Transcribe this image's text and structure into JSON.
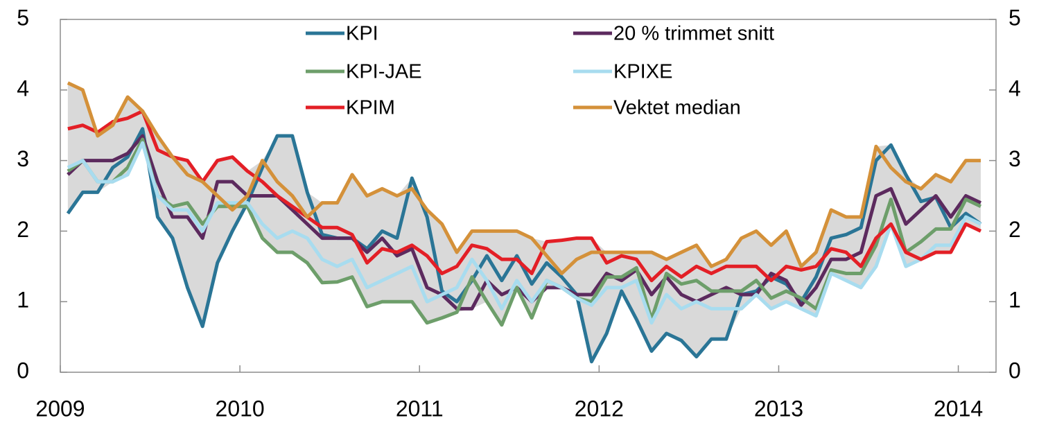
{
  "chart_data": {
    "type": "line",
    "x": [
      2009.042,
      2009.125,
      2009.208,
      2009.292,
      2009.375,
      2009.458,
      2009.542,
      2009.625,
      2009.708,
      2009.792,
      2009.875,
      2009.958,
      2010.042,
      2010.125,
      2010.208,
      2010.292,
      2010.375,
      2010.458,
      2010.542,
      2010.625,
      2010.708,
      2010.792,
      2010.875,
      2010.958,
      2011.042,
      2011.125,
      2011.208,
      2011.292,
      2011.375,
      2011.458,
      2011.542,
      2011.625,
      2011.708,
      2011.792,
      2011.875,
      2011.958,
      2012.042,
      2012.125,
      2012.208,
      2012.292,
      2012.375,
      2012.458,
      2012.542,
      2012.625,
      2012.708,
      2012.792,
      2012.875,
      2012.958,
      2013.042,
      2013.125,
      2013.208,
      2013.292,
      2013.375,
      2013.458,
      2013.542,
      2013.625,
      2013.708,
      2013.792,
      2013.875,
      2013.958,
      2014.042,
      2014.125
    ],
    "xlim": [
      2009,
      2014.21
    ],
    "xticks": [
      2009,
      2010,
      2011,
      2012,
      2013,
      2014
    ],
    "ylim": [
      0,
      5
    ],
    "yticks": [
      0,
      1,
      2,
      3,
      4,
      5
    ],
    "y2lim": [
      0,
      5
    ],
    "y2ticks": [
      0,
      1,
      2,
      3,
      4,
      5
    ],
    "range_band": true,
    "series": [
      {
        "name": "KPI",
        "color": "#2a7596",
        "values": [
          2.25,
          2.55,
          2.55,
          2.9,
          3.05,
          3.45,
          2.2,
          1.9,
          1.2,
          0.65,
          1.55,
          2.0,
          2.4,
          2.9,
          3.35,
          3.35,
          2.55,
          1.95,
          1.9,
          1.9,
          1.75,
          2.0,
          1.9,
          2.75,
          2.2,
          1.15,
          1.0,
          1.3,
          1.65,
          1.3,
          1.65,
          1.25,
          1.55,
          1.35,
          1.1,
          0.15,
          0.55,
          1.15,
          0.75,
          0.3,
          0.55,
          0.45,
          0.22,
          0.47,
          0.47,
          1.1,
          1.15,
          1.35,
          1.25,
          1.0,
          1.35,
          1.9,
          1.95,
          2.05,
          3.0,
          3.22,
          2.8,
          2.42,
          2.48,
          2.05,
          2.25,
          2.1
        ]
      },
      {
        "name": "20 % trimmet snitt",
        "color": "#5c2a5e",
        "values": [
          2.8,
          3.0,
          3.0,
          3.0,
          3.1,
          3.35,
          2.7,
          2.2,
          2.2,
          1.9,
          2.7,
          2.7,
          2.5,
          2.5,
          2.5,
          2.3,
          2.1,
          1.9,
          1.9,
          1.9,
          1.7,
          1.9,
          1.65,
          1.75,
          1.2,
          1.1,
          0.9,
          0.9,
          1.3,
          1.1,
          1.2,
          1.0,
          1.2,
          1.2,
          1.1,
          1.1,
          1.4,
          1.3,
          1.45,
          1.1,
          1.35,
          1.1,
          1.0,
          1.1,
          1.2,
          1.1,
          1.1,
          1.4,
          1.3,
          0.95,
          1.2,
          1.6,
          1.6,
          1.7,
          2.5,
          2.6,
          2.1,
          2.3,
          2.5,
          2.2,
          2.5,
          2.4
        ]
      },
      {
        "name": "KPI-JAE",
        "color": "#6d9e6a",
        "values": [
          2.85,
          3.0,
          2.7,
          2.7,
          2.9,
          3.3,
          2.5,
          2.35,
          2.4,
          2.1,
          2.35,
          2.35,
          2.35,
          1.9,
          1.7,
          1.7,
          1.55,
          1.27,
          1.28,
          1.35,
          0.93,
          1.0,
          1.0,
          1.0,
          0.7,
          0.77,
          0.85,
          1.35,
          1.0,
          0.67,
          1.2,
          0.77,
          1.3,
          1.2,
          1.05,
          1.0,
          1.35,
          1.35,
          1.48,
          0.75,
          1.4,
          1.25,
          1.3,
          1.15,
          1.15,
          1.15,
          1.3,
          1.05,
          1.15,
          1.05,
          0.9,
          1.45,
          1.4,
          1.4,
          1.8,
          2.45,
          1.7,
          1.85,
          2.03,
          2.03,
          2.45,
          2.35
        ]
      },
      {
        "name": "KPIXE",
        "color": "#a8dcef",
        "values": [
          2.9,
          3.0,
          2.7,
          2.7,
          2.8,
          3.25,
          2.5,
          2.3,
          2.3,
          2.0,
          2.4,
          2.4,
          2.4,
          2.1,
          1.9,
          2.0,
          1.9,
          1.6,
          1.5,
          1.6,
          1.2,
          1.3,
          1.4,
          1.5,
          1.0,
          1.1,
          1.2,
          1.6,
          1.3,
          0.9,
          1.3,
          1.0,
          1.3,
          1.2,
          1.05,
          0.95,
          1.2,
          1.2,
          1.3,
          0.7,
          1.1,
          0.9,
          1.0,
          0.9,
          0.9,
          0.9,
          1.1,
          0.9,
          1.0,
          0.9,
          0.8,
          1.4,
          1.3,
          1.2,
          1.5,
          2.1,
          1.5,
          1.6,
          1.8,
          1.8,
          2.2,
          2.1
        ]
      },
      {
        "name": "KPIM",
        "color": "#e31f26",
        "values": [
          3.45,
          3.5,
          3.4,
          3.55,
          3.6,
          3.7,
          3.15,
          3.05,
          3.0,
          2.7,
          3.0,
          3.05,
          2.85,
          2.7,
          2.5,
          2.35,
          2.2,
          2.05,
          2.05,
          1.95,
          1.55,
          1.75,
          1.7,
          1.8,
          1.65,
          1.4,
          1.5,
          1.8,
          1.75,
          1.6,
          1.6,
          1.4,
          1.85,
          1.87,
          1.9,
          1.9,
          1.55,
          1.65,
          1.6,
          1.3,
          1.5,
          1.35,
          1.5,
          1.4,
          1.5,
          1.5,
          1.5,
          1.3,
          1.5,
          1.45,
          1.5,
          1.75,
          1.7,
          1.5,
          1.9,
          2.1,
          1.7,
          1.6,
          1.7,
          1.7,
          2.1,
          2.0
        ]
      },
      {
        "name": "Vektet median",
        "color": "#d4913a",
        "values": [
          4.1,
          4.0,
          3.35,
          3.5,
          3.9,
          3.7,
          3.35,
          3.05,
          2.8,
          2.7,
          2.5,
          2.3,
          2.5,
          3.0,
          2.7,
          2.5,
          2.2,
          2.4,
          2.4,
          2.8,
          2.5,
          2.6,
          2.5,
          2.6,
          2.3,
          2.1,
          1.7,
          2.0,
          2.0,
          2.0,
          2.0,
          1.9,
          1.65,
          1.4,
          1.6,
          1.7,
          1.7,
          1.7,
          1.7,
          1.7,
          1.6,
          1.7,
          1.8,
          1.5,
          1.6,
          1.9,
          2.0,
          1.8,
          2.0,
          1.5,
          1.7,
          2.3,
          2.2,
          2.2,
          3.2,
          2.9,
          2.7,
          2.6,
          2.8,
          2.7,
          3.0,
          3.0
        ]
      }
    ]
  }
}
